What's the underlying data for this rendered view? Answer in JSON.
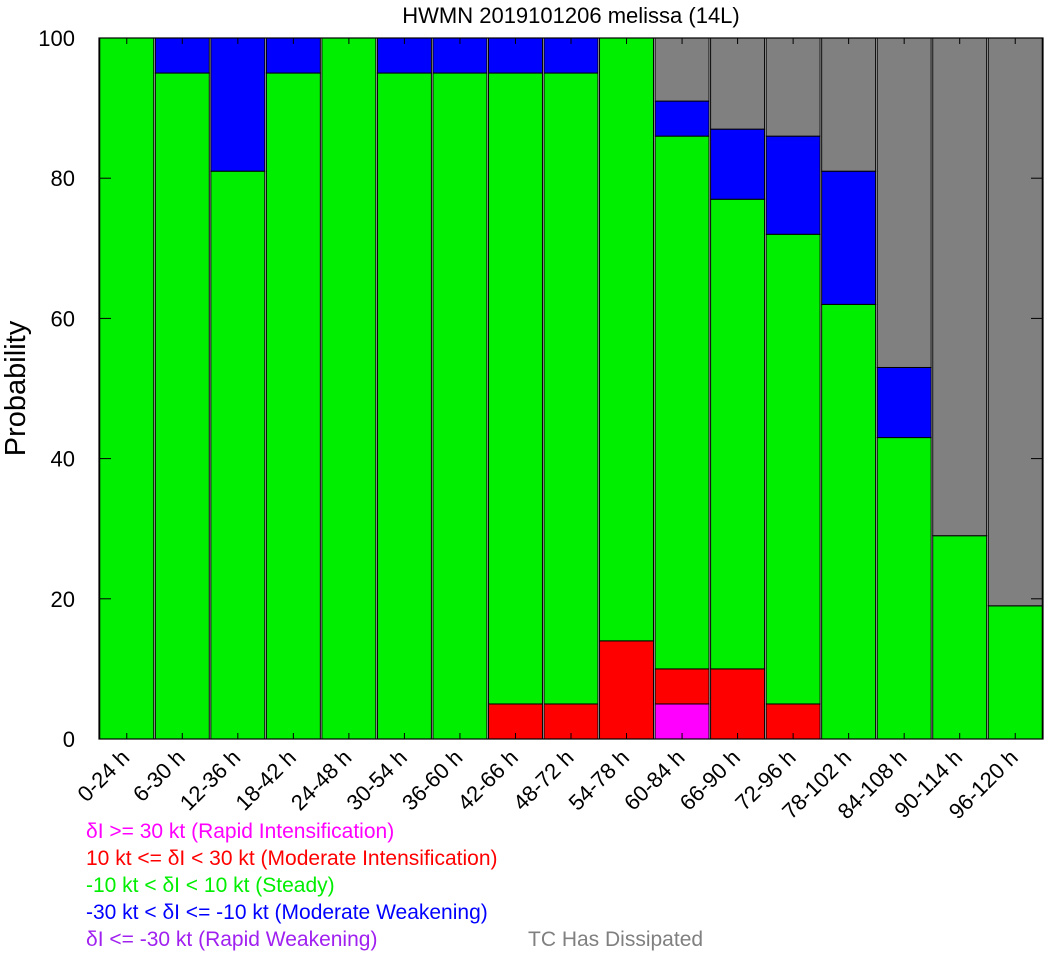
{
  "chart_data": {
    "type": "bar",
    "stacked": true,
    "title": "HWMN 2019101206 melissa (14L)",
    "xlabel": "",
    "ylabel": "Probability",
    "ylim": [
      0,
      100
    ],
    "yticks": [
      0,
      20,
      40,
      60,
      80,
      100
    ],
    "grid": false,
    "categories": [
      "0-24 h",
      "6-30 h",
      "12-36 h",
      "18-42 h",
      "24-48 h",
      "30-54 h",
      "36-60 h",
      "42-66 h",
      "48-72 h",
      "54-78 h",
      "60-84 h",
      "66-90 h",
      "72-96 h",
      "78-102 h",
      "84-108 h",
      "90-114 h",
      "96-120 h"
    ],
    "series": [
      {
        "key": "ri",
        "color": "#ff00ff",
        "values": [
          0,
          0,
          0,
          0,
          0,
          0,
          0,
          0,
          0,
          0,
          5,
          0,
          0,
          0,
          0,
          0,
          0
        ]
      },
      {
        "key": "mi",
        "color": "#ff0000",
        "values": [
          0,
          0,
          0,
          0,
          0,
          0,
          0,
          5,
          5,
          14,
          5,
          10,
          5,
          0,
          0,
          0,
          0
        ]
      },
      {
        "key": "steady",
        "color": "#00ee00",
        "values": [
          100,
          95,
          81,
          95,
          100,
          95,
          95,
          90,
          90,
          86,
          76,
          67,
          67,
          62,
          43,
          29,
          19
        ]
      },
      {
        "key": "mw",
        "color": "#0000ff",
        "values": [
          0,
          5,
          19,
          5,
          0,
          5,
          5,
          5,
          5,
          0,
          5,
          10,
          14,
          19,
          10,
          0,
          0
        ]
      },
      {
        "key": "rw",
        "color": "#a020f0",
        "values": [
          0,
          0,
          0,
          0,
          0,
          0,
          0,
          0,
          0,
          0,
          0,
          0,
          0,
          0,
          0,
          0,
          0
        ]
      },
      {
        "key": "dissipated",
        "color": "#808080",
        "values": [
          0,
          0,
          0,
          0,
          0,
          0,
          0,
          0,
          0,
          0,
          9,
          13,
          14,
          19,
          47,
          71,
          81
        ]
      }
    ],
    "legend": {
      "placement": "bottom",
      "entries": [
        {
          "label": "δI >= 30 kt (Rapid Intensification)",
          "color": "#ff00ff"
        },
        {
          "label": "10 kt <= δI < 30 kt (Moderate Intensification)",
          "color": "#ff0000"
        },
        {
          "label": "-10 kt < δI < 10 kt (Steady)",
          "color": "#00ee00"
        },
        {
          "label": "-30 kt < δI <= -10 kt (Moderate Weakening)",
          "color": "#0000ff"
        },
        {
          "label": "δI <= -30 kt (Rapid Weakening)",
          "color": "#a020f0"
        },
        {
          "label": "TC Has Dissipated",
          "color": "#808080"
        }
      ]
    }
  }
}
